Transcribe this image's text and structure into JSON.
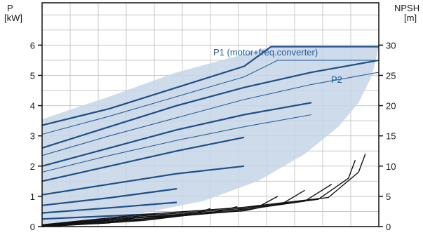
{
  "chart_data": {
    "type": "line",
    "left_axis": {
      "label_line1": "P",
      "label_line2": "[kW]",
      "ticks": [
        "0",
        "1",
        "2",
        "3",
        "4",
        "5",
        "6"
      ],
      "ylim": [
        0,
        7.4
      ]
    },
    "right_axis": {
      "label_line1": "NPSH",
      "label_line2": "[m]",
      "ticks": [
        "0",
        "5",
        "10",
        "15",
        "20",
        "25",
        "30"
      ],
      "ylim": [
        0,
        37
      ]
    },
    "x_axis": {
      "xlim": [
        0,
        100
      ],
      "tick_labels": false
    },
    "grid": true,
    "annotations": {
      "p1": "P1 (motor+freq.converter)",
      "p2": "P2"
    },
    "colors": {
      "envelope": "#c5d5e6",
      "p1_curve": "#1f4f86",
      "p2_curve": "#2a5f9a",
      "npsh_curve": "#111111",
      "grid": "#c8c8c8"
    },
    "series": [
      {
        "group": "P1",
        "points": [
          [
            0,
            3.35
          ],
          [
            20,
            3.9
          ],
          [
            40,
            4.6
          ],
          [
            60,
            5.3
          ],
          [
            68,
            5.95
          ],
          [
            100,
            5.95
          ]
        ]
      },
      {
        "group": "P1",
        "points": [
          [
            0,
            2.6
          ],
          [
            20,
            3.3
          ],
          [
            40,
            4.0
          ],
          [
            60,
            4.6
          ],
          [
            80,
            5.1
          ],
          [
            100,
            5.5
          ]
        ]
      },
      {
        "group": "P1",
        "points": [
          [
            0,
            2.0
          ],
          [
            20,
            2.6
          ],
          [
            40,
            3.2
          ],
          [
            60,
            3.7
          ],
          [
            80,
            4.1
          ]
        ]
      },
      {
        "group": "P1",
        "points": [
          [
            0,
            1.5
          ],
          [
            20,
            2.0
          ],
          [
            40,
            2.5
          ],
          [
            60,
            2.95
          ]
        ]
      },
      {
        "group": "P1",
        "points": [
          [
            0,
            1.05
          ],
          [
            20,
            1.4
          ],
          [
            40,
            1.75
          ],
          [
            60,
            2.0
          ]
        ]
      },
      {
        "group": "P1",
        "points": [
          [
            0,
            0.7
          ],
          [
            20,
            0.95
          ],
          [
            40,
            1.25
          ]
        ]
      },
      {
        "group": "P1",
        "points": [
          [
            0,
            0.45
          ],
          [
            20,
            0.62
          ],
          [
            40,
            0.8
          ]
        ]
      },
      {
        "group": "P1",
        "points": [
          [
            0,
            0.25
          ],
          [
            20,
            0.35
          ],
          [
            34,
            0.42
          ]
        ]
      },
      {
        "group": "P2",
        "points": [
          [
            0,
            3.05
          ],
          [
            20,
            3.65
          ],
          [
            40,
            4.3
          ],
          [
            60,
            4.95
          ],
          [
            70,
            5.5
          ],
          [
            100,
            5.5
          ]
        ]
      },
      {
        "group": "P2",
        "points": [
          [
            0,
            2.35
          ],
          [
            20,
            3.0
          ],
          [
            40,
            3.6
          ],
          [
            60,
            4.2
          ],
          [
            80,
            4.7
          ],
          [
            100,
            5.1
          ]
        ]
      },
      {
        "group": "P2",
        "points": [
          [
            0,
            1.8
          ],
          [
            20,
            2.35
          ],
          [
            40,
            2.85
          ],
          [
            60,
            3.3
          ],
          [
            80,
            3.7
          ]
        ]
      },
      {
        "group": "NPSH",
        "points": [
          [
            0,
            0.3
          ],
          [
            30,
            2.0
          ],
          [
            60,
            3.2
          ],
          [
            85,
            4.8
          ],
          [
            94,
            9.0
          ],
          [
            96,
            12.0
          ]
        ]
      },
      {
        "group": "NPSH",
        "points": [
          [
            0,
            0.2
          ],
          [
            30,
            1.8
          ],
          [
            60,
            3.0
          ],
          [
            82,
            4.5
          ],
          [
            91,
            8.0
          ],
          [
            93,
            11.0
          ]
        ]
      },
      {
        "group": "NPSH",
        "points": [
          [
            0,
            0.1
          ],
          [
            30,
            1.6
          ],
          [
            60,
            2.8
          ],
          [
            78,
            4.2
          ],
          [
            86,
            7.0
          ]
        ]
      },
      {
        "group": "NPSH",
        "points": [
          [
            0,
            0.1
          ],
          [
            30,
            1.5
          ],
          [
            60,
            2.6
          ],
          [
            72,
            4.0
          ],
          [
            78,
            6.0
          ]
        ]
      },
      {
        "group": "NPSH",
        "points": [
          [
            0,
            0
          ],
          [
            30,
            1.3
          ],
          [
            55,
            2.4
          ],
          [
            65,
            3.5
          ],
          [
            70,
            5.0
          ]
        ]
      },
      {
        "group": "NPSH",
        "points": [
          [
            0,
            0
          ],
          [
            30,
            1.2
          ],
          [
            50,
            2.2
          ],
          [
            58,
            3.3
          ]
        ]
      },
      {
        "group": "NPSH",
        "points": [
          [
            0,
            0
          ],
          [
            30,
            1.0
          ],
          [
            45,
            2.0
          ],
          [
            50,
            3.0
          ]
        ]
      },
      {
        "group": "NPSH",
        "points": [
          [
            0,
            0
          ],
          [
            25,
            0.8
          ],
          [
            38,
            1.8
          ]
        ]
      },
      {
        "group": "NPSH",
        "points": [
          [
            0,
            0
          ],
          [
            20,
            0.6
          ],
          [
            28,
            1.5
          ]
        ]
      }
    ]
  }
}
